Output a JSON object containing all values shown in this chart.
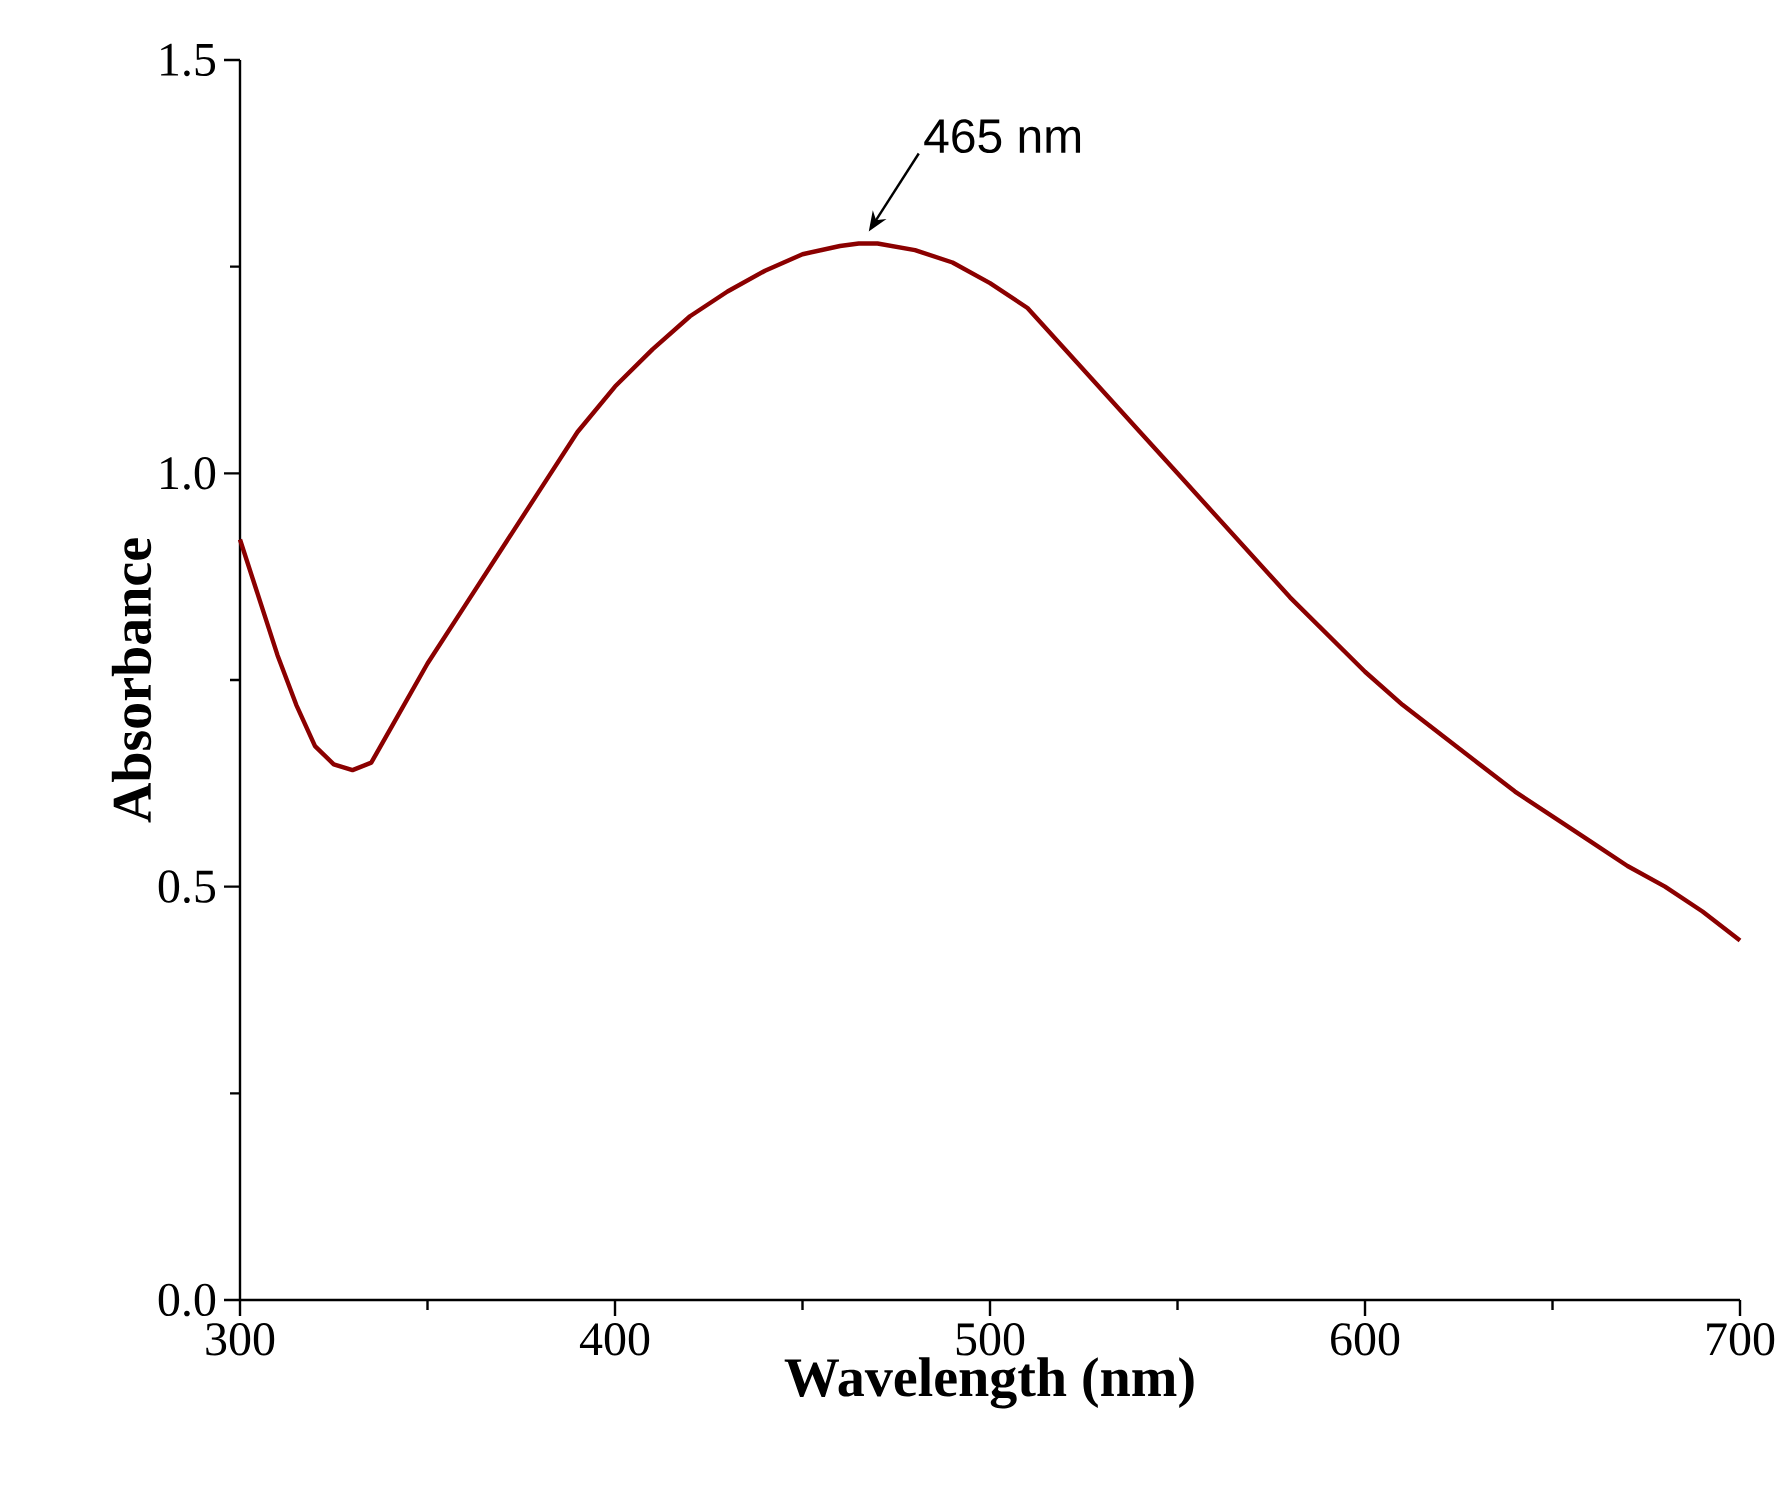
{
  "chart_data": {
    "type": "line",
    "xlabel": "Wavelength (nm)",
    "ylabel": "Absorbance",
    "xlim": [
      300,
      700
    ],
    "ylim": [
      0,
      1.5
    ],
    "xticks": [
      300,
      400,
      500,
      600,
      700
    ],
    "yticks": [
      {
        "value": 0,
        "label": "0.0"
      },
      {
        "value": 0.5,
        "label": "0.5"
      },
      {
        "value": 1.0,
        "label": "1.0"
      },
      {
        "value": 1.5,
        "label": "1.5"
      }
    ],
    "grid": false,
    "marker": "none",
    "line_style": "solid",
    "annotations": [
      {
        "text": "465 nm",
        "x": 465,
        "y": 1.278
      }
    ],
    "x": [
      300,
      305,
      310,
      315,
      320,
      325,
      330,
      335,
      340,
      350,
      360,
      370,
      380,
      390,
      400,
      410,
      420,
      430,
      440,
      450,
      460,
      465,
      470,
      480,
      490,
      500,
      510,
      520,
      530,
      540,
      550,
      560,
      570,
      580,
      590,
      600,
      610,
      620,
      630,
      640,
      650,
      660,
      670,
      680,
      690,
      700
    ],
    "series": [
      {
        "color": "#8b0000",
        "values": [
          0.92,
          0.85,
          0.78,
          0.72,
          0.67,
          0.648,
          0.641,
          0.65,
          0.69,
          0.77,
          0.84,
          0.91,
          0.98,
          1.05,
          1.105,
          1.15,
          1.19,
          1.22,
          1.245,
          1.265,
          1.275,
          1.278,
          1.278,
          1.27,
          1.255,
          1.23,
          1.2,
          1.15,
          1.1,
          1.05,
          1.0,
          0.95,
          0.9,
          0.85,
          0.805,
          0.76,
          0.72,
          0.685,
          0.65,
          0.615,
          0.585,
          0.555,
          0.525,
          0.5,
          0.47,
          0.435
        ]
      }
    ]
  }
}
